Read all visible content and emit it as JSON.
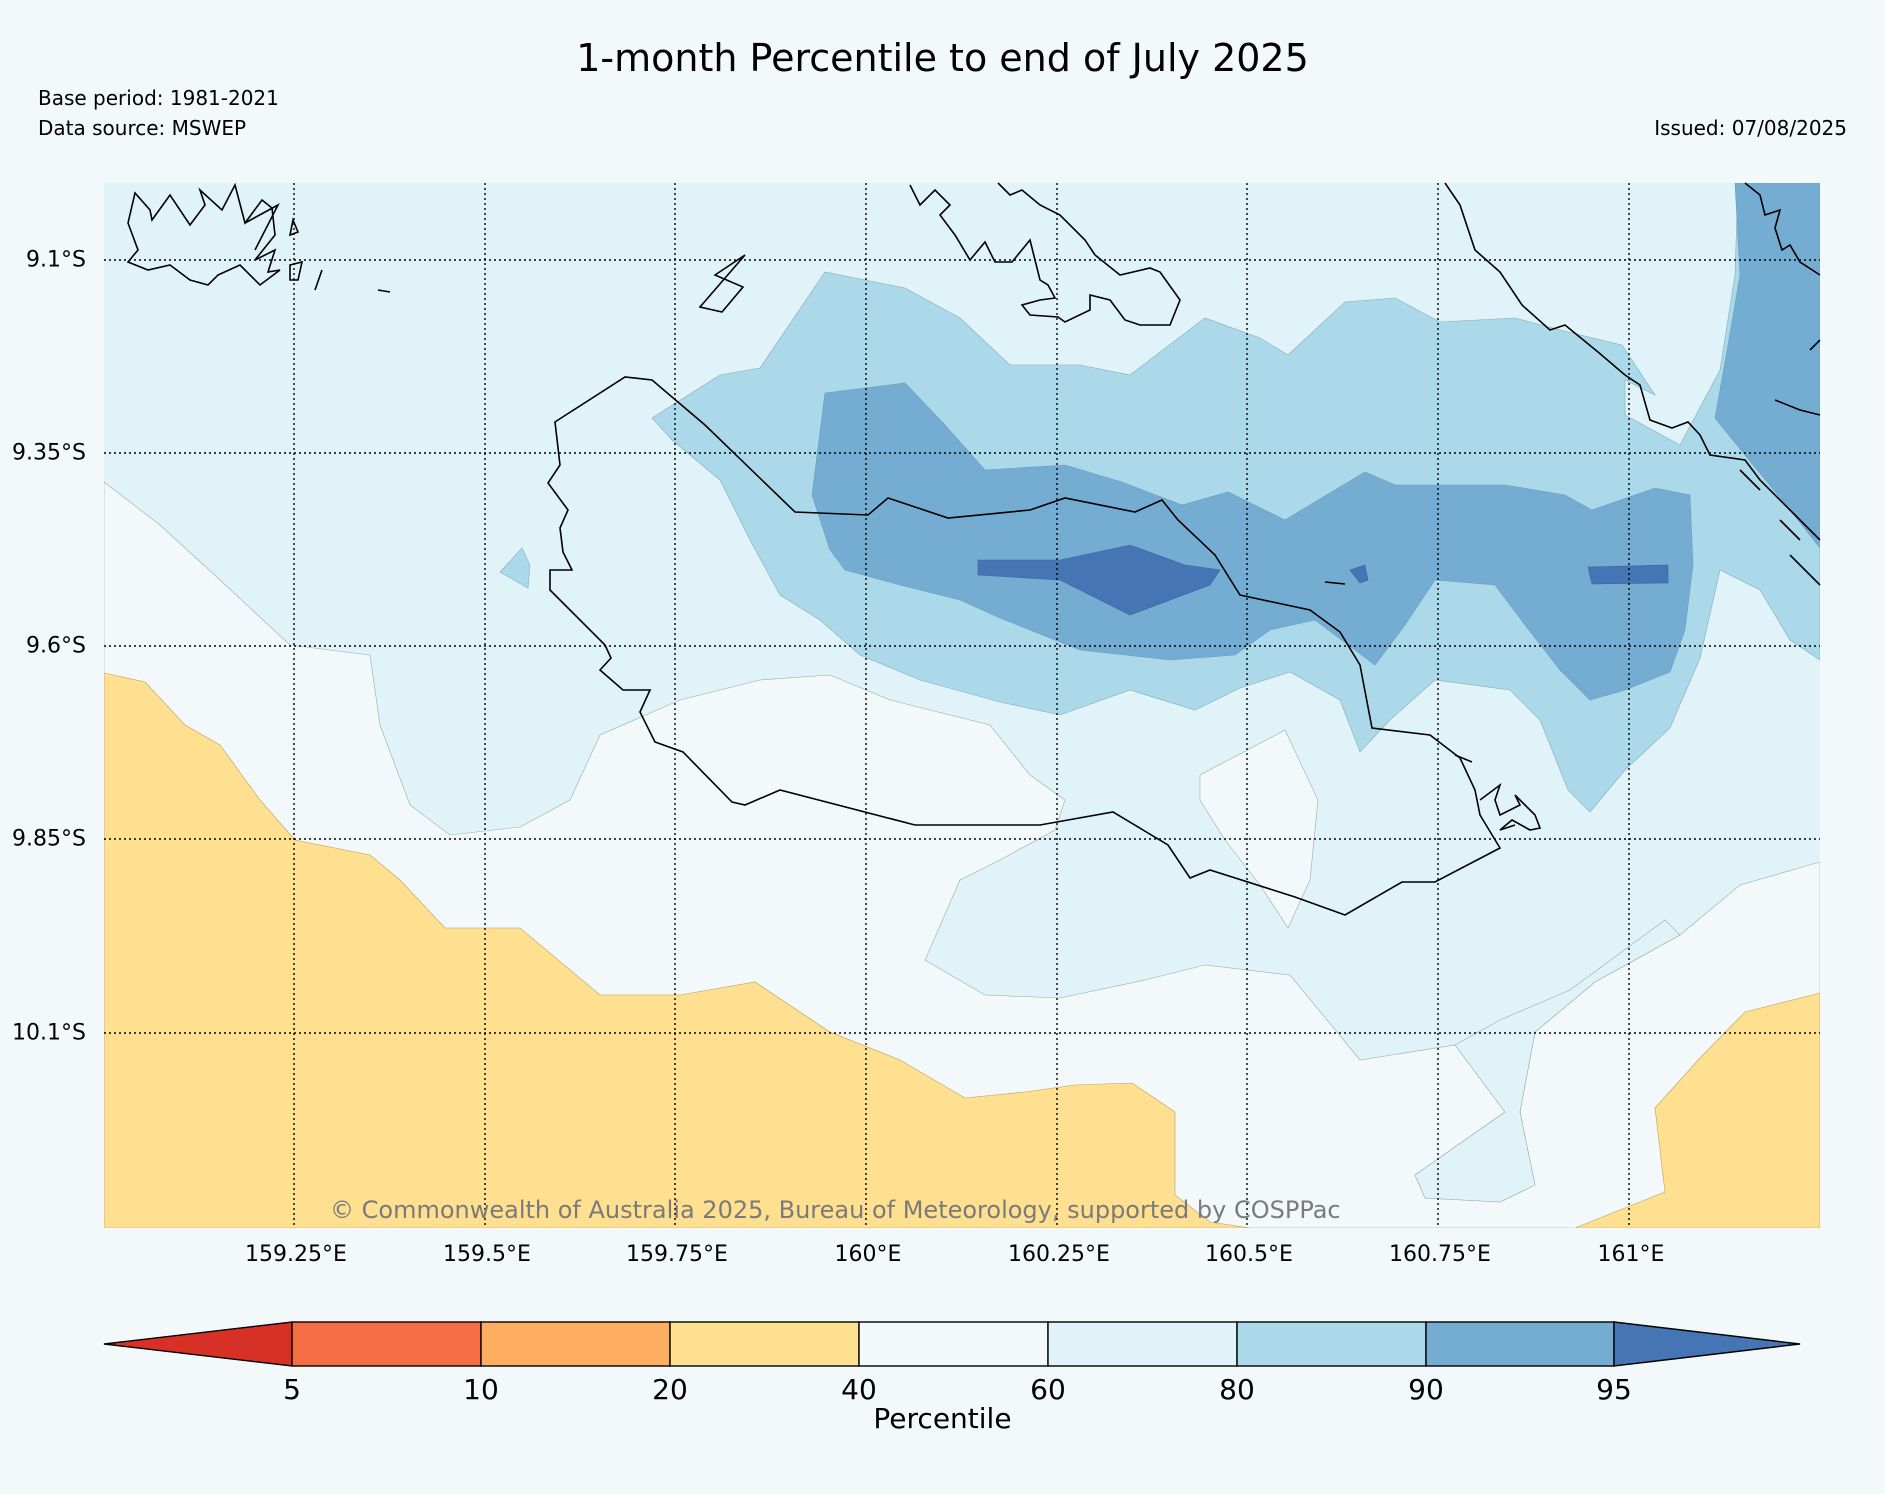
{
  "title": "1-month Percentile to end of July 2025",
  "base_period": "Base period: 1981-2021",
  "data_source": "Data source: MSWEP",
  "issued": "Issued: 07/08/2025",
  "copyright": "© Commonwealth of Australia 2025, Bureau of Meteorology, supported by COSPPac",
  "map": {
    "lat_labels": [
      "9.1°S",
      "9.35°S",
      "9.6°S",
      "9.85°S",
      "10.1°S"
    ],
    "lon_labels": [
      "159.25°E",
      "159.5°E",
      "159.75°E",
      "160°E",
      "160.25°E",
      "160.5°E",
      "160.75°E",
      "161°E"
    ],
    "grid": "dotted"
  },
  "colorbar": {
    "title": "Percentile",
    "ticks": [
      "5",
      "10",
      "20",
      "40",
      "60",
      "80",
      "90",
      "95"
    ],
    "colors": [
      "#d73027",
      "#f46d43",
      "#fdae61",
      "#fee090",
      "#f3f9fb",
      "#e0f3f8",
      "#abd9e9",
      "#74add1",
      "#4575b4"
    ]
  },
  "legend_colors": {
    "below_40": "#fee090",
    "p40_60": "#f3f9fb",
    "p60_80": "#e0f3f8",
    "p80_90": "#abd9e9",
    "p90_95": "#74add1",
    "above_95": "#4575b4"
  }
}
